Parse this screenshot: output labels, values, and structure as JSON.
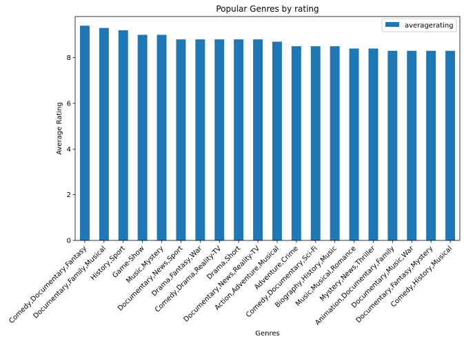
{
  "chart_data": {
    "type": "bar",
    "title": "Popular Genres by rating",
    "xlabel": "Genres",
    "ylabel": "Average Rating",
    "ylim": [
      0,
      9.8
    ],
    "yticks": [
      0,
      2,
      4,
      6,
      8
    ],
    "grid": false,
    "legend": {
      "placement": "top-right",
      "entries": [
        "averagerating"
      ]
    },
    "categories": [
      "Comedy,Documentary,Fantasy",
      "Documentary,Family,Musical",
      "History,Sport",
      "Game-Show",
      "Music,Mystery",
      "Documentary,News,Sport",
      "Drama,Fantasy,War",
      "Comedy,Drama,Reality-TV",
      "Drama,Short",
      "Documentary,News,Reality-TV",
      "Action,Adventure,Musical",
      "Adventure,Crime",
      "Comedy,Documentary,Sci-Fi",
      "Biography,History,Music",
      "Music,Musical,Romance",
      "Mystery,News,Thriller",
      "Animation,Documentary,Family",
      "Documentary,Music,War",
      "Documentary,Fantasy,Mystery",
      "Comedy,History,Musical"
    ],
    "series": [
      {
        "name": "averagerating",
        "color": "#1f77b4",
        "values": [
          9.4,
          9.3,
          9.2,
          9.0,
          9.0,
          8.8,
          8.8,
          8.8,
          8.8,
          8.8,
          8.7,
          8.5,
          8.5,
          8.5,
          8.4,
          8.4,
          8.3,
          8.3,
          8.3,
          8.3
        ]
      }
    ]
  }
}
